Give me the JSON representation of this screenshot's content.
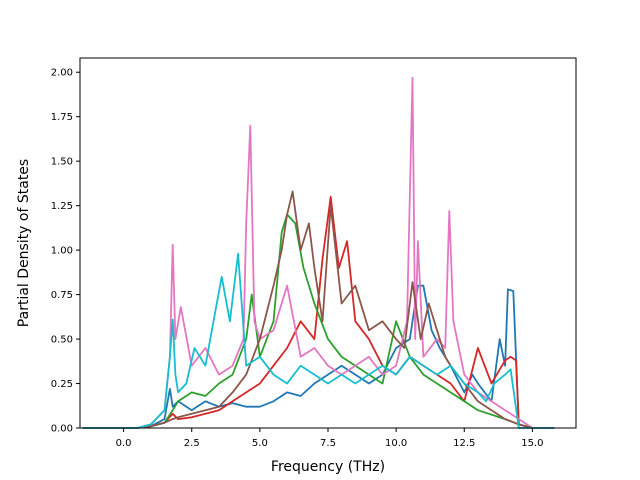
{
  "chart_data": {
    "type": "line",
    "title": "",
    "xlabel": "Frequency (THz)",
    "ylabel": "Partial Density of States",
    "xlim": [
      -1.6,
      16.6
    ],
    "ylim": [
      0.0,
      2.08
    ],
    "xticks": [
      0.0,
      2.5,
      5.0,
      7.5,
      10.0,
      12.5,
      15.0
    ],
    "xtick_labels": [
      "0.0",
      "2.5",
      "5.0",
      "7.5",
      "10.0",
      "12.5",
      "15.0"
    ],
    "yticks": [
      0.0,
      0.25,
      0.5,
      0.75,
      1.0,
      1.25,
      1.5,
      1.75,
      2.0
    ],
    "ytick_labels": [
      "0.00",
      "0.25",
      "0.50",
      "0.75",
      "1.00",
      "1.25",
      "1.50",
      "1.75",
      "2.00"
    ],
    "grid": false,
    "legend": "none",
    "series": [
      {
        "color": "#1f77b4",
        "x": [
          -1.5,
          0.5,
          1.0,
          1.5,
          1.7,
          1.8,
          2.0,
          2.5,
          3.0,
          3.5,
          4.0,
          4.5,
          5.0,
          5.5,
          6.0,
          6.5,
          7.0,
          7.5,
          8.0,
          8.5,
          9.0,
          9.5,
          10.0,
          10.5,
          10.8,
          11.0,
          11.3,
          11.6,
          12.0,
          12.5,
          12.8,
          13.0,
          13.5,
          13.8,
          14.0,
          14.1,
          14.3,
          14.5,
          15.0,
          15.8
        ],
        "y": [
          0.0,
          0.0,
          0.01,
          0.05,
          0.22,
          0.12,
          0.15,
          0.1,
          0.15,
          0.12,
          0.14,
          0.12,
          0.12,
          0.15,
          0.2,
          0.18,
          0.25,
          0.3,
          0.35,
          0.3,
          0.25,
          0.3,
          0.45,
          0.5,
          0.8,
          0.8,
          0.55,
          0.45,
          0.35,
          0.2,
          0.3,
          0.25,
          0.15,
          0.5,
          0.35,
          0.78,
          0.77,
          0.02,
          0.0,
          0.0
        ]
      },
      {
        "color": "#d62728",
        "x": [
          -1.5,
          0.5,
          1.0,
          1.5,
          1.8,
          2.0,
          2.5,
          3.0,
          3.5,
          4.0,
          4.5,
          5.0,
          5.5,
          6.0,
          6.5,
          7.0,
          7.3,
          7.6,
          7.9,
          8.2,
          8.5,
          9.0,
          9.5,
          10.0,
          10.5,
          11.0,
          11.5,
          12.0,
          12.5,
          13.0,
          13.5,
          14.0,
          14.2,
          14.4,
          14.5,
          15.0,
          15.8
        ],
        "y": [
          0.0,
          0.0,
          0.01,
          0.03,
          0.08,
          0.05,
          0.06,
          0.08,
          0.1,
          0.15,
          0.2,
          0.25,
          0.35,
          0.45,
          0.6,
          0.5,
          0.95,
          1.3,
          0.9,
          1.05,
          0.6,
          0.5,
          0.35,
          0.3,
          0.4,
          0.35,
          0.3,
          0.25,
          0.15,
          0.45,
          0.25,
          0.38,
          0.4,
          0.38,
          0.02,
          0.0,
          0.0
        ]
      },
      {
        "color": "#2ca02c",
        "x": [
          -1.5,
          0.5,
          1.0,
          1.5,
          1.8,
          2.0,
          2.5,
          3.0,
          3.5,
          4.0,
          4.5,
          4.7,
          5.0,
          5.5,
          5.8,
          6.0,
          6.3,
          6.6,
          7.0,
          7.5,
          8.0,
          8.5,
          9.0,
          9.5,
          10.0,
          10.5,
          11.0,
          11.5,
          12.0,
          12.5,
          13.0,
          14.0,
          14.5,
          15.0
        ],
        "y": [
          0.0,
          0.0,
          0.01,
          0.03,
          0.1,
          0.15,
          0.2,
          0.18,
          0.25,
          0.3,
          0.5,
          0.75,
          0.4,
          0.6,
          1.1,
          1.2,
          1.15,
          0.9,
          0.7,
          0.5,
          0.4,
          0.35,
          0.3,
          0.25,
          0.6,
          0.4,
          0.3,
          0.25,
          0.2,
          0.15,
          0.1,
          0.05,
          0.02,
          0.0
        ]
      },
      {
        "color": "#e377c2",
        "x": [
          -1.5,
          0.5,
          1.0,
          1.5,
          1.7,
          1.8,
          1.9,
          2.1,
          2.5,
          3.0,
          3.5,
          4.0,
          4.4,
          4.5,
          4.65,
          4.8,
          5.0,
          5.5,
          6.0,
          6.5,
          7.0,
          7.5,
          8.0,
          8.5,
          9.0,
          9.5,
          10.0,
          10.4,
          10.6,
          10.7,
          10.8,
          11.0,
          11.5,
          11.8,
          11.95,
          12.1,
          12.5,
          13.0,
          13.5,
          14.0,
          14.5,
          15.0,
          15.8
        ],
        "y": [
          0.0,
          0.0,
          0.02,
          0.1,
          0.4,
          1.03,
          0.5,
          0.68,
          0.35,
          0.45,
          0.3,
          0.35,
          0.5,
          1.15,
          1.7,
          0.6,
          0.5,
          0.55,
          0.8,
          0.4,
          0.45,
          0.35,
          0.3,
          0.35,
          0.4,
          0.3,
          0.35,
          0.6,
          1.97,
          0.5,
          1.05,
          0.4,
          0.5,
          0.45,
          1.22,
          0.6,
          0.3,
          0.2,
          0.15,
          0.1,
          0.05,
          0.0,
          0.0
        ]
      },
      {
        "color": "#8c564b",
        "x": [
          -1.5,
          0.5,
          1.0,
          1.5,
          1.8,
          2.0,
          2.5,
          3.0,
          3.5,
          4.0,
          4.5,
          5.0,
          5.5,
          5.8,
          6.0,
          6.2,
          6.5,
          6.8,
          7.0,
          7.3,
          7.6,
          8.0,
          8.5,
          9.0,
          9.5,
          10.0,
          10.3,
          10.6,
          10.9,
          11.2,
          11.5,
          11.8,
          12.0,
          12.5,
          13.0,
          13.5,
          14.0,
          14.5,
          15.0
        ],
        "y": [
          0.0,
          0.0,
          0.01,
          0.03,
          0.05,
          0.06,
          0.08,
          0.1,
          0.12,
          0.2,
          0.3,
          0.5,
          0.8,
          1.0,
          1.2,
          1.33,
          1.0,
          1.15,
          0.9,
          0.6,
          1.25,
          0.7,
          0.8,
          0.55,
          0.6,
          0.5,
          0.45,
          0.82,
          0.5,
          0.7,
          0.55,
          0.4,
          0.35,
          0.25,
          0.15,
          0.1,
          0.05,
          0.02,
          0.0
        ]
      },
      {
        "color": "#17becf",
        "x": [
          -1.5,
          0.5,
          1.0,
          1.5,
          1.7,
          1.8,
          1.9,
          2.0,
          2.3,
          2.6,
          3.0,
          3.3,
          3.6,
          3.9,
          4.2,
          4.5,
          5.0,
          5.5,
          6.0,
          6.5,
          7.0,
          7.5,
          8.0,
          8.5,
          9.0,
          9.5,
          10.0,
          10.5,
          11.0,
          11.5,
          12.0,
          12.5,
          13.0,
          13.3,
          13.6,
          14.0,
          14.2,
          14.5,
          15.0,
          15.8
        ],
        "y": [
          0.0,
          0.0,
          0.02,
          0.1,
          0.4,
          0.61,
          0.3,
          0.2,
          0.25,
          0.45,
          0.35,
          0.6,
          0.85,
          0.6,
          0.98,
          0.35,
          0.4,
          0.3,
          0.25,
          0.35,
          0.3,
          0.25,
          0.3,
          0.25,
          0.3,
          0.35,
          0.3,
          0.4,
          0.35,
          0.3,
          0.35,
          0.25,
          0.2,
          0.15,
          0.25,
          0.3,
          0.33,
          0.0,
          0.0,
          0.0
        ]
      }
    ]
  }
}
